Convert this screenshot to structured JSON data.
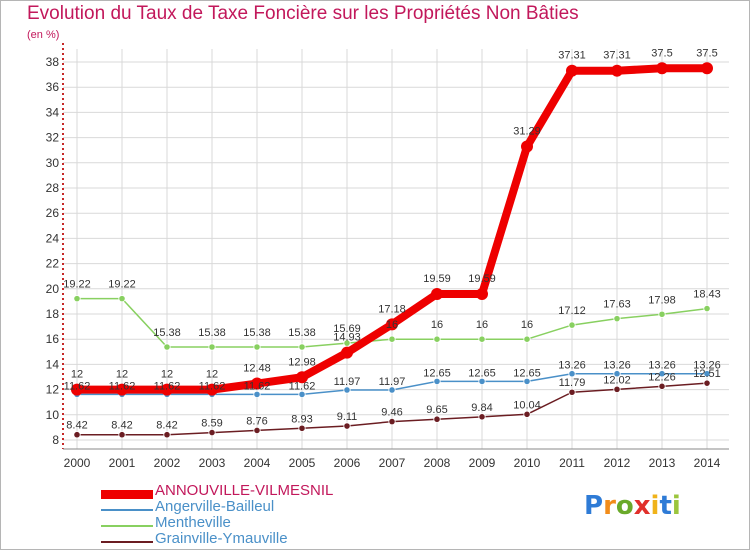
{
  "header": {
    "title": "Evolution du Taux de Taxe Foncière sur les Propriétés Non Bâties",
    "unit": "(en %)"
  },
  "logo": {
    "letters": [
      "P",
      "r",
      "o",
      "x",
      "i",
      "t",
      "i"
    ]
  },
  "chart_data": {
    "type": "line",
    "title": "Evolution du Taux de Taxe Foncière sur les Propriétés Non Bâties",
    "ylabel": "(en %)",
    "xlabel": "",
    "x": [
      "2000",
      "2001",
      "2002",
      "2003",
      "2004",
      "2005",
      "2006",
      "2007",
      "2008",
      "2009",
      "2010",
      "2011",
      "2012",
      "2013",
      "2014"
    ],
    "ylim": [
      8,
      38
    ],
    "yticks": [
      "8",
      "10",
      "12",
      "14",
      "16",
      "18",
      "20",
      "22",
      "24",
      "26",
      "28",
      "30",
      "32",
      "34",
      "36",
      "38"
    ],
    "grid": true,
    "legend": "bottom-left",
    "series": [
      {
        "name": "ANNOUVILLE-VILMESNIL",
        "color": "#ee0000",
        "emphasis": "thick",
        "values": [
          12,
          12,
          12,
          12,
          12.48,
          12.98,
          14.93,
          17.18,
          19.59,
          19.59,
          31.29,
          37.31,
          37.31,
          37.5,
          37.5
        ],
        "labels": [
          "12",
          "12",
          "12",
          "12",
          "12.48",
          "12.98",
          "14.93",
          "17.18",
          "19.59",
          "19.59",
          "31.29",
          "37.31",
          "37.31",
          "37.5",
          "37.5"
        ]
      },
      {
        "name": "Angerville-Bailleul",
        "color": "#4a90c8",
        "values": [
          11.62,
          11.62,
          11.62,
          11.62,
          11.62,
          11.62,
          11.97,
          11.97,
          12.65,
          12.65,
          12.65,
          13.26,
          13.26,
          13.26,
          13.26
        ],
        "labels": [
          "11.62",
          "11.62",
          "11.62",
          "11.62",
          "11.62",
          "11.62",
          "11.97",
          "11.97",
          "12.65",
          "12.65",
          "12.65",
          "13.26",
          "13.26",
          "13.26",
          "13.26"
        ]
      },
      {
        "name": "Mentheville",
        "color": "#88d060",
        "values": [
          19.22,
          19.22,
          15.38,
          15.38,
          15.38,
          15.38,
          15.69,
          16,
          16,
          16,
          16,
          17.12,
          17.63,
          17.98,
          18.43
        ],
        "labels": [
          "19.22",
          "19.22",
          "15.38",
          "15.38",
          "15.38",
          "15.38",
          "15.69",
          "16",
          "16",
          "16",
          "16",
          "17.12",
          "17.63",
          "17.98",
          "18.43"
        ]
      },
      {
        "name": "Grainville-Ymauville",
        "color": "#6b1d22",
        "values": [
          8.42,
          8.42,
          8.42,
          8.59,
          8.76,
          8.93,
          9.11,
          9.46,
          9.65,
          9.84,
          10.04,
          11.79,
          12.02,
          12.26,
          12.51
        ],
        "labels": [
          "8.42",
          "8.42",
          "8.42",
          "8.59",
          "8.76",
          "8.93",
          "9.11",
          "9.46",
          "9.65",
          "9.84",
          "10.04",
          "11.79",
          "12.02",
          "12.26",
          "12.51"
        ]
      }
    ]
  }
}
